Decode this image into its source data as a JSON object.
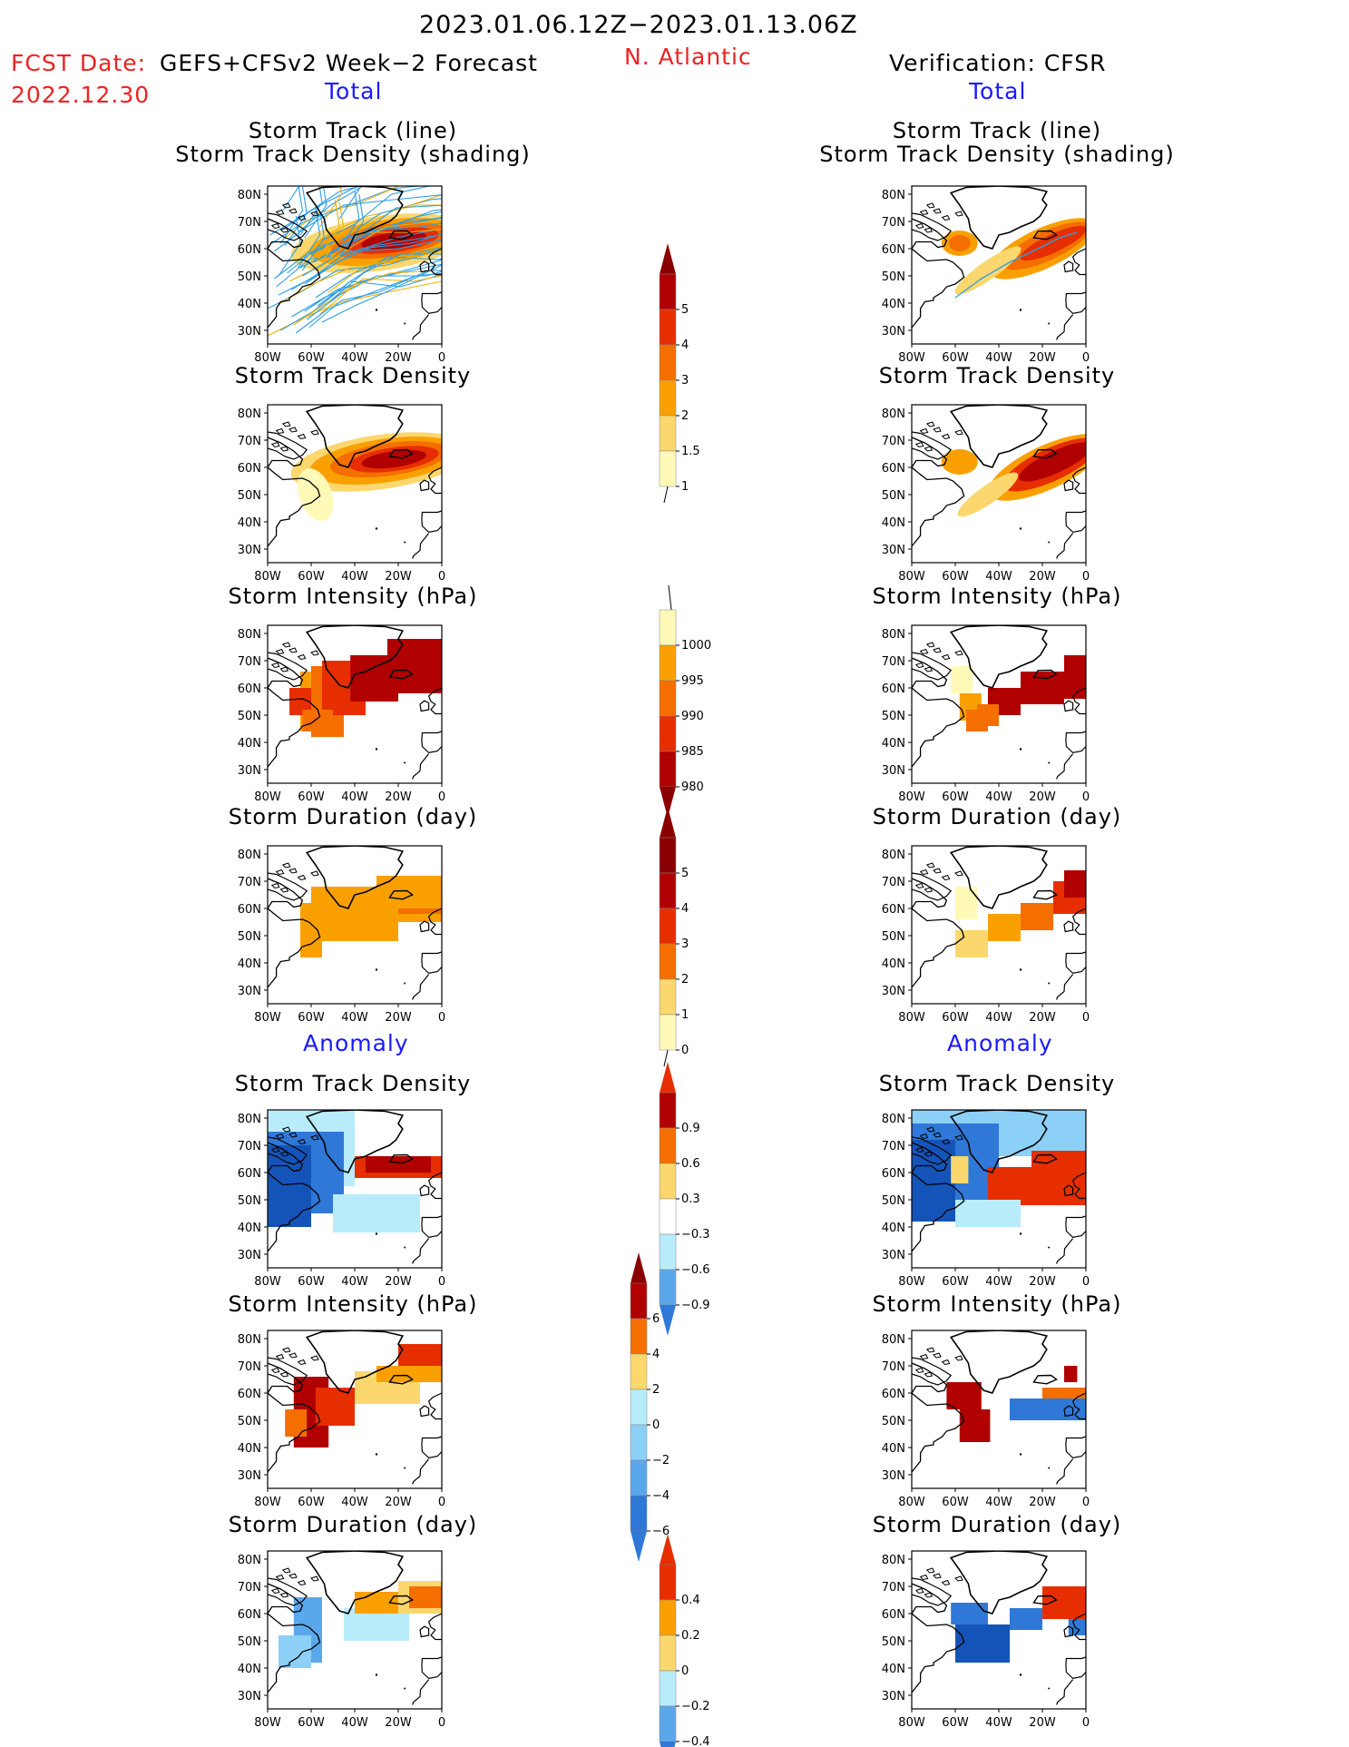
{
  "header": {
    "period": "2023.01.06.12Z−2023.01.13.06Z",
    "fcst_label": "FCST Date:",
    "fcst_model": "GEFS+CFSv2 Week−2 Forecast",
    "fcst_date": "2022.12.30",
    "region": "N. Atlantic",
    "verification": "Verification: CFSR"
  },
  "sections": {
    "total_left": "Total",
    "total_right": "Total",
    "anomaly_left": "Anomaly",
    "anomaly_right": "Anomaly"
  },
  "panel_titles": {
    "track_line": "Storm Track (line)",
    "track_density_shading": "Storm Track Density (shading)",
    "track_density": "Storm Track Density",
    "intensity": "Storm Intensity (hPa)",
    "duration": "Storm Duration (day)"
  },
  "axes": {
    "lat_ticks": [
      "80N",
      "70N",
      "60N",
      "50N",
      "40N",
      "30N"
    ],
    "lon_ticks": [
      "80W",
      "60W",
      "40W",
      "20W",
      "0"
    ]
  },
  "colorbars": {
    "density": [
      "5",
      "4",
      "3",
      "2",
      "1.5",
      "1"
    ],
    "intensity": [
      "1000",
      "995",
      "990",
      "985",
      "980"
    ],
    "duration": [
      "5",
      "4",
      "3",
      "2",
      "1",
      "0"
    ],
    "density_anom": [
      "0.9",
      "0.6",
      "0.3",
      "−0.3",
      "−0.6",
      "−0.9"
    ],
    "intensity_anom": [
      "6",
      "4",
      "2",
      "0",
      "−2",
      "−4",
      "−6"
    ],
    "duration_anom": [
      "0.4",
      "0.2",
      "0",
      "−0.2",
      "−0.4"
    ]
  },
  "colors": {
    "warm": [
      "#fff9b8",
      "#fbd76e",
      "#f9a000",
      "#f46e00",
      "#e62e00",
      "#b00000",
      "#8a0000"
    ],
    "cool": [
      "#b8ecfb",
      "#8ccff7",
      "#5aa8ec",
      "#2f78d8",
      "#1454b8"
    ],
    "header_red": "#ee2222",
    "section_blue": "#1a1aff",
    "track_blue": "#2a9fe8",
    "track_yellow": "#f2b000"
  },
  "chart_data": [
    {
      "type": "heatmap",
      "title": "Storm Track (line) / Storm Track Density (shading)",
      "source": "Forecast",
      "section": "Total",
      "xlim": [
        -80,
        0
      ],
      "ylim": [
        25,
        83
      ],
      "scale": [
        1,
        1.5,
        2,
        3,
        4,
        5
      ]
    },
    {
      "type": "heatmap",
      "title": "Storm Track (line) / Storm Track Density (shading)",
      "source": "CFSR",
      "section": "Total",
      "xlim": [
        -80,
        0
      ],
      "ylim": [
        25,
        83
      ],
      "scale": [
        1,
        1.5,
        2,
        3,
        4,
        5
      ]
    },
    {
      "type": "heatmap",
      "title": "Storm Track Density",
      "source": "Forecast",
      "section": "Total",
      "xlim": [
        -80,
        0
      ],
      "ylim": [
        25,
        83
      ]
    },
    {
      "type": "heatmap",
      "title": "Storm Track Density",
      "source": "CFSR",
      "section": "Total",
      "xlim": [
        -80,
        0
      ],
      "ylim": [
        25,
        83
      ]
    },
    {
      "type": "heatmap",
      "title": "Storm Intensity (hPa)",
      "source": "Forecast",
      "section": "Total",
      "xlim": [
        -80,
        0
      ],
      "ylim": [
        25,
        83
      ],
      "scale": [
        1000,
        995,
        990,
        985,
        980
      ]
    },
    {
      "type": "heatmap",
      "title": "Storm Intensity (hPa)",
      "source": "CFSR",
      "section": "Total",
      "xlim": [
        -80,
        0
      ],
      "ylim": [
        25,
        83
      ]
    },
    {
      "type": "heatmap",
      "title": "Storm Duration (day)",
      "source": "Forecast",
      "section": "Total",
      "xlim": [
        -80,
        0
      ],
      "ylim": [
        25,
        83
      ],
      "scale": [
        0,
        1,
        2,
        3,
        4,
        5
      ]
    },
    {
      "type": "heatmap",
      "title": "Storm Duration (day)",
      "source": "CFSR",
      "section": "Total",
      "xlim": [
        -80,
        0
      ],
      "ylim": [
        25,
        83
      ]
    },
    {
      "type": "heatmap",
      "title": "Storm Track Density",
      "source": "Forecast",
      "section": "Anomaly",
      "xlim": [
        -80,
        0
      ],
      "ylim": [
        25,
        83
      ],
      "scale": [
        -0.9,
        -0.6,
        -0.3,
        0.3,
        0.6,
        0.9
      ]
    },
    {
      "type": "heatmap",
      "title": "Storm Track Density",
      "source": "CFSR",
      "section": "Anomaly",
      "xlim": [
        -80,
        0
      ],
      "ylim": [
        25,
        83
      ]
    },
    {
      "type": "heatmap",
      "title": "Storm Intensity (hPa)",
      "source": "Forecast",
      "section": "Anomaly",
      "xlim": [
        -80,
        0
      ],
      "ylim": [
        25,
        83
      ],
      "scale": [
        -6,
        -4,
        -2,
        0,
        2,
        4,
        6
      ]
    },
    {
      "type": "heatmap",
      "title": "Storm Intensity (hPa)",
      "source": "CFSR",
      "section": "Anomaly",
      "xlim": [
        -80,
        0
      ],
      "ylim": [
        25,
        83
      ]
    },
    {
      "type": "heatmap",
      "title": "Storm Duration (day)",
      "source": "Forecast",
      "section": "Anomaly",
      "xlim": [
        -80,
        0
      ],
      "ylim": [
        25,
        83
      ],
      "scale": [
        -0.4,
        -0.2,
        0,
        0.2,
        0.4
      ]
    },
    {
      "type": "heatmap",
      "title": "Storm Duration (day)",
      "source": "CFSR",
      "section": "Anomaly",
      "xlim": [
        -80,
        0
      ],
      "ylim": [
        25,
        83
      ]
    }
  ]
}
